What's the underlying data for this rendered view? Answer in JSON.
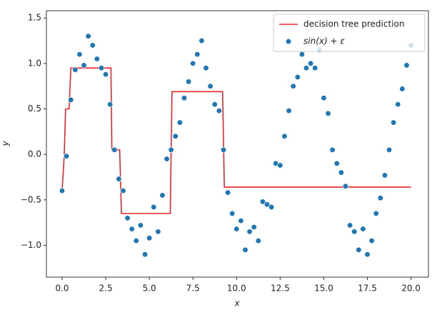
{
  "chart_data": {
    "type": "scatter",
    "x_label": "x",
    "y_label": "y",
    "xlim": [
      -0.9,
      21
    ],
    "ylim": [
      -1.35,
      1.58
    ],
    "xticks": [
      {
        "value": 0,
        "label": "0.0"
      },
      {
        "value": 2.5,
        "label": "2.5"
      },
      {
        "value": 5,
        "label": "5.0"
      },
      {
        "value": 7.5,
        "label": "7.5"
      },
      {
        "value": 10,
        "label": "10.0"
      },
      {
        "value": 12.5,
        "label": "12.5"
      },
      {
        "value": 15,
        "label": "15.0"
      },
      {
        "value": 17.5,
        "label": "17.5"
      },
      {
        "value": 20,
        "label": "20.0"
      }
    ],
    "yticks": [
      {
        "value": -1,
        "label": "−1.0"
      },
      {
        "value": -0.5,
        "label": "−0.5"
      },
      {
        "value": 0,
        "label": "0.0"
      },
      {
        "value": 0.5,
        "label": "0.5"
      },
      {
        "value": 1,
        "label": "1.0"
      },
      {
        "value": 1.5,
        "label": "1.5"
      }
    ],
    "legend": "upper right",
    "series": [
      {
        "name": "decision tree prediction",
        "type": "line",
        "color": "#e8262a",
        "x": [
          0,
          0.12,
          0.2,
          0.4,
          0.5,
          2.8,
          2.85,
          3.3,
          3.4,
          6.2,
          6.3,
          9.2,
          9.3,
          20
        ],
        "values": [
          -0.4,
          -0.02,
          0.5,
          0.5,
          0.95,
          0.95,
          0.05,
          0.05,
          -0.65,
          -0.65,
          0.69,
          0.69,
          -0.36,
          -0.36
        ]
      },
      {
        "name": "sin(x) + ε",
        "type": "scatter",
        "color": "#1f77b4",
        "x": [
          0,
          0.25,
          0.5,
          0.75,
          1,
          1.25,
          1.5,
          1.75,
          2,
          2.25,
          2.5,
          2.75,
          3,
          3.25,
          3.5,
          3.75,
          4,
          4.25,
          4.5,
          4.75,
          5,
          5.25,
          5.5,
          5.75,
          6,
          6.25,
          6.5,
          6.75,
          7,
          7.25,
          7.5,
          7.75,
          8,
          8.25,
          8.5,
          8.75,
          9,
          9.25,
          9.5,
          9.75,
          10,
          10.25,
          10.5,
          10.75,
          11,
          11.25,
          11.5,
          11.75,
          12,
          12.25,
          12.5,
          12.75,
          13,
          13.25,
          13.5,
          13.75,
          14,
          14.25,
          14.5,
          14.75,
          15,
          15.25,
          15.5,
          15.75,
          16,
          16.25,
          16.5,
          16.75,
          17,
          17.25,
          17.5,
          17.75,
          18,
          18.25,
          18.5,
          18.75,
          19,
          19.25,
          19.5,
          19.75,
          20
        ],
        "values": [
          -0.4,
          -0.02,
          0.6,
          0.93,
          1.1,
          0.98,
          1.3,
          1.2,
          1.05,
          0.95,
          0.88,
          0.55,
          0.05,
          -0.27,
          -0.4,
          -0.7,
          -0.82,
          -0.95,
          -0.78,
          -1.1,
          -0.92,
          -0.58,
          -0.85,
          -0.45,
          -0.05,
          0.05,
          0.2,
          0.35,
          0.62,
          0.8,
          1.0,
          1.1,
          1.25,
          0.95,
          0.75,
          0.55,
          0.48,
          0.05,
          -0.42,
          -0.65,
          -0.82,
          -0.73,
          -1.05,
          -0.85,
          -0.8,
          -0.95,
          -0.52,
          -0.55,
          -0.58,
          -0.1,
          -0.12,
          0.2,
          0.48,
          0.75,
          0.85,
          1.1,
          0.95,
          1.0,
          0.95,
          1.15,
          0.62,
          0.45,
          0.05,
          -0.1,
          -0.2,
          -0.35,
          -0.78,
          -0.85,
          -1.05,
          -0.82,
          -1.1,
          -0.95,
          -0.65,
          -0.48,
          -0.23,
          0.05,
          0.35,
          0.55,
          0.72,
          0.98,
          1.2
        ]
      }
    ]
  }
}
